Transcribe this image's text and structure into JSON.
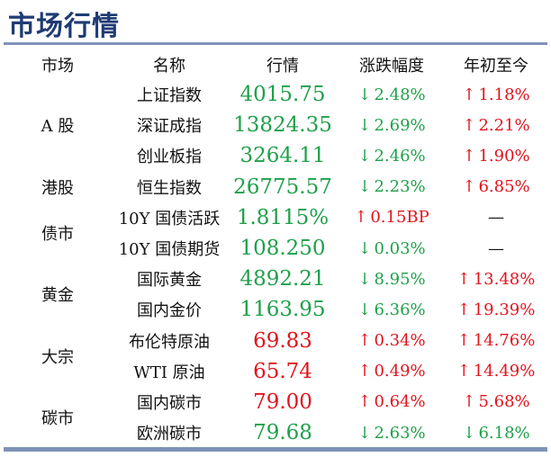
{
  "title": "市场行情",
  "headers": {
    "market": "市场",
    "name": "名称",
    "price": "行情",
    "change": "涨跌幅度",
    "ytd": "年初至今"
  },
  "colors": {
    "up": "#e0141d",
    "down": "#1fa04a"
  },
  "groups": [
    {
      "market": "A 股",
      "rows": [
        {
          "name": "上证指数",
          "price": "4015.75",
          "price_dir": "down",
          "change": "2.48%",
          "change_dir": "down",
          "ytd": "1.18%",
          "ytd_dir": "up"
        },
        {
          "name": "深证成指",
          "price": "13824.35",
          "price_dir": "down",
          "change": "2.69%",
          "change_dir": "down",
          "ytd": "2.21%",
          "ytd_dir": "up"
        },
        {
          "name": "创业板指",
          "price": "3264.11",
          "price_dir": "down",
          "change": "2.46%",
          "change_dir": "down",
          "ytd": "1.90%",
          "ytd_dir": "up"
        }
      ]
    },
    {
      "market": "港股",
      "rows": [
        {
          "name": "恒生指数",
          "price": "26775.57",
          "price_dir": "down",
          "change": "2.23%",
          "change_dir": "down",
          "ytd": "6.85%",
          "ytd_dir": "up"
        }
      ]
    },
    {
      "market": "债市",
      "rows": [
        {
          "name": "10Y 国债活跃",
          "price": "1.8115%",
          "price_dir": "down",
          "change": "0.15BP",
          "change_dir": "up",
          "ytd": "—",
          "ytd_dir": "none"
        },
        {
          "name": "10Y 国债期货",
          "price": "108.250",
          "price_dir": "down",
          "change": "0.03%",
          "change_dir": "down",
          "ytd": "—",
          "ytd_dir": "none"
        }
      ]
    },
    {
      "market": "黄金",
      "rows": [
        {
          "name": "国际黄金",
          "price": "4892.21",
          "price_dir": "down",
          "change": "8.95%",
          "change_dir": "down",
          "ytd": "13.48%",
          "ytd_dir": "up"
        },
        {
          "name": "国内金价",
          "price": "1163.95",
          "price_dir": "down",
          "change": "6.36%",
          "change_dir": "down",
          "ytd": "19.39%",
          "ytd_dir": "up"
        }
      ]
    },
    {
      "market": "大宗",
      "rows": [
        {
          "name": "布伦特原油",
          "price": "69.83",
          "price_dir": "up",
          "change": "0.34%",
          "change_dir": "up",
          "ytd": "14.76%",
          "ytd_dir": "up"
        },
        {
          "name": "WTI 原油",
          "price": "65.74",
          "price_dir": "up",
          "change": "0.49%",
          "change_dir": "up",
          "ytd": "14.49%",
          "ytd_dir": "up"
        }
      ]
    },
    {
      "market": "碳市",
      "rows": [
        {
          "name": "国内碳市",
          "price": "79.00",
          "price_dir": "up",
          "change": "0.64%",
          "change_dir": "up",
          "ytd": "5.68%",
          "ytd_dir": "up"
        },
        {
          "name": "欧洲碳市",
          "price": "79.68",
          "price_dir": "down",
          "change": "2.63%",
          "change_dir": "down",
          "ytd": "6.18%",
          "ytd_dir": "down"
        }
      ]
    }
  ]
}
